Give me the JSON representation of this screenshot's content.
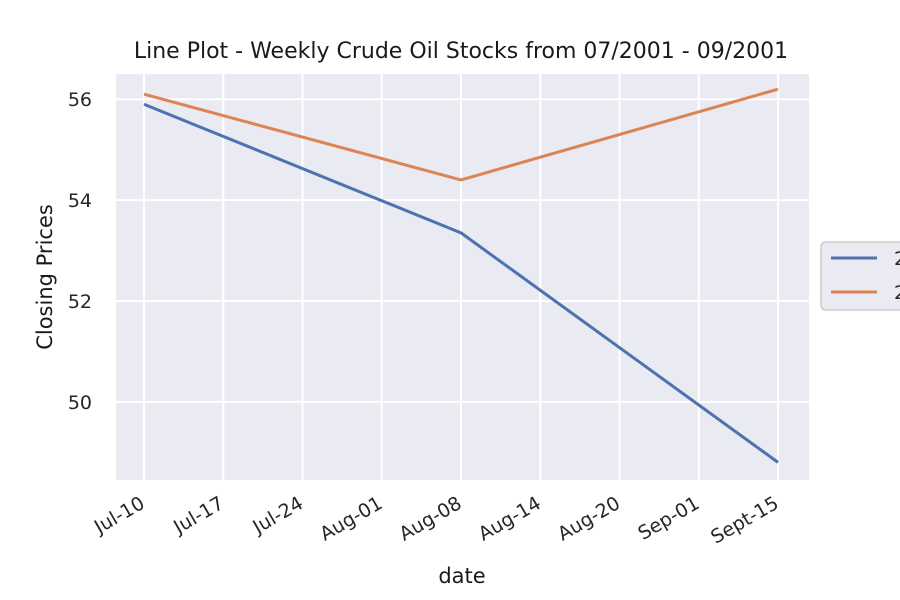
{
  "chart_data": {
    "type": "line",
    "title": "Line Plot - Weekly Crude Oil Stocks from 07/2001 - 09/2001",
    "xlabel": "date",
    "ylabel": "Closing Prices",
    "categories": [
      "Jul-10",
      "Jul-17",
      "Jul-24",
      "Aug-01",
      "Aug-08",
      "Aug-14",
      "Aug-20",
      "Sep-01",
      "Sept-15"
    ],
    "y_ticks": [
      50,
      52,
      54,
      56
    ],
    "ylim": [
      48.45,
      56.5
    ],
    "grid": true,
    "legend_position": "center right (clipped)",
    "series": [
      {
        "name": "2",
        "color": "#4c72b0",
        "points": [
          {
            "x": "Jul-10",
            "y": 55.9
          },
          {
            "x": "Aug-08",
            "y": 53.35
          },
          {
            "x": "Sept-15",
            "y": 48.8
          }
        ]
      },
      {
        "name": "2",
        "color": "#dd8452",
        "points": [
          {
            "x": "Jul-10",
            "y": 56.1
          },
          {
            "x": "Aug-08",
            "y": 54.4
          },
          {
            "x": "Sept-15",
            "y": 56.2
          }
        ]
      }
    ],
    "colors": {
      "plot_background": "#eaeaf2",
      "grid": "#ffffff"
    }
  }
}
